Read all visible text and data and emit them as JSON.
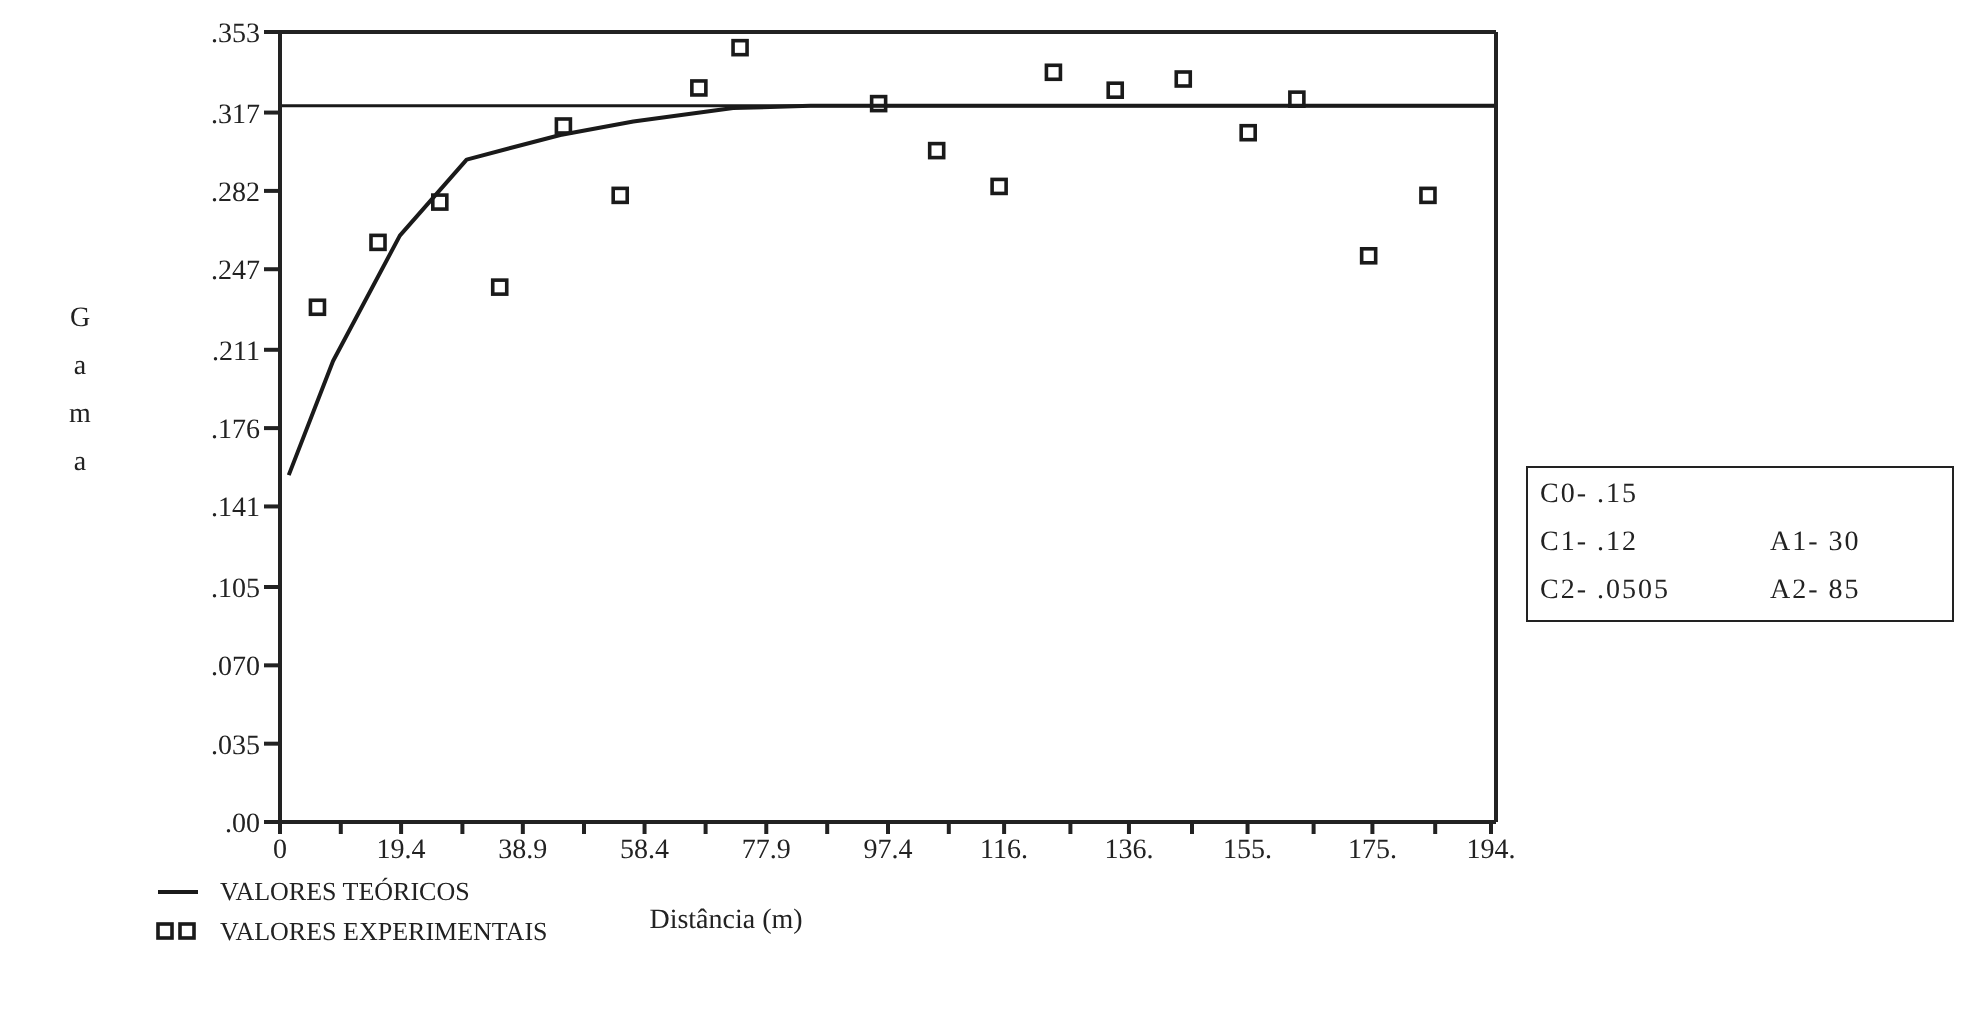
{
  "chart_data": {
    "type": "scatter",
    "xlabel": "Distância (m)",
    "ylabel": "Gama",
    "xlim": [
      0,
      194.8
    ],
    "ylim": [
      0,
      0.353
    ],
    "xticks": [
      {
        "value": 0,
        "label": "0"
      },
      {
        "value": 9.74,
        "label": null
      },
      {
        "value": 19.4,
        "label": "19.4"
      },
      {
        "value": 29.22,
        "label": null
      },
      {
        "value": 38.9,
        "label": "38.9"
      },
      {
        "value": 48.7,
        "label": null
      },
      {
        "value": 58.4,
        "label": "58.4"
      },
      {
        "value": 68.18,
        "label": null
      },
      {
        "value": 77.9,
        "label": "77.9"
      },
      {
        "value": 87.66,
        "label": null
      },
      {
        "value": 97.4,
        "label": "97.4"
      },
      {
        "value": 107.14,
        "label": null
      },
      {
        "value": 116,
        "label": "116."
      },
      {
        "value": 126.62,
        "label": null
      },
      {
        "value": 136,
        "label": "136."
      },
      {
        "value": 146.1,
        "label": null
      },
      {
        "value": 155,
        "label": "155."
      },
      {
        "value": 165.58,
        "label": null
      },
      {
        "value": 175,
        "label": "175."
      },
      {
        "value": 185.06,
        "label": null
      },
      {
        "value": 194,
        "label": "194."
      }
    ],
    "yticks": [
      {
        "value": 0,
        "label": ".00"
      },
      {
        "value": 0.035,
        "label": ".035"
      },
      {
        "value": 0.07,
        "label": ".070"
      },
      {
        "value": 0.105,
        "label": ".105"
      },
      {
        "value": 0.141,
        "label": ".141"
      },
      {
        "value": 0.176,
        "label": ".176"
      },
      {
        "value": 0.211,
        "label": ".211"
      },
      {
        "value": 0.247,
        "label": ".247"
      },
      {
        "value": 0.282,
        "label": ".282"
      },
      {
        "value": 0.317,
        "label": ".317"
      },
      {
        "value": 0.353,
        "label": ".353"
      }
    ],
    "series": [
      {
        "name": "VALORES TEÓRICOS",
        "type": "line",
        "color": "#1a1a1a",
        "x": [
          1.4,
          8.5,
          19.2,
          29.9,
          44.9,
          56.6,
          72.6,
          85,
          194.8
        ],
        "values": [
          0.155,
          0.206,
          0.262,
          0.296,
          0.307,
          0.313,
          0.319,
          0.32,
          0.32
        ]
      },
      {
        "name": "VALORES EXPERIMENTAIS",
        "color": "#1a1a1a",
        "marker": "square",
        "x": [
          6,
          15.7,
          25.6,
          35.2,
          45.4,
          54.5,
          67.1,
          73.7,
          95.9,
          105.2,
          115.2,
          123.9,
          133.8,
          144.7,
          155.1,
          162.9,
          174.4,
          183.9
        ],
        "values": [
          0.23,
          0.259,
          0.277,
          0.239,
          0.311,
          0.28,
          0.328,
          0.346,
          0.321,
          0.3,
          0.284,
          0.335,
          0.327,
          0.332,
          0.308,
          0.323,
          0.253,
          0.28
        ]
      }
    ],
    "ref_lines": [
      {
        "axis": "y",
        "value": 0.32,
        "color": "#1a1a1a"
      }
    ],
    "annotations": [
      "C0- .15",
      "C1- .12",
      "A1- 30",
      "C2- .0505",
      "A2- 85"
    ],
    "legend": "bottom left",
    "grid": false
  }
}
